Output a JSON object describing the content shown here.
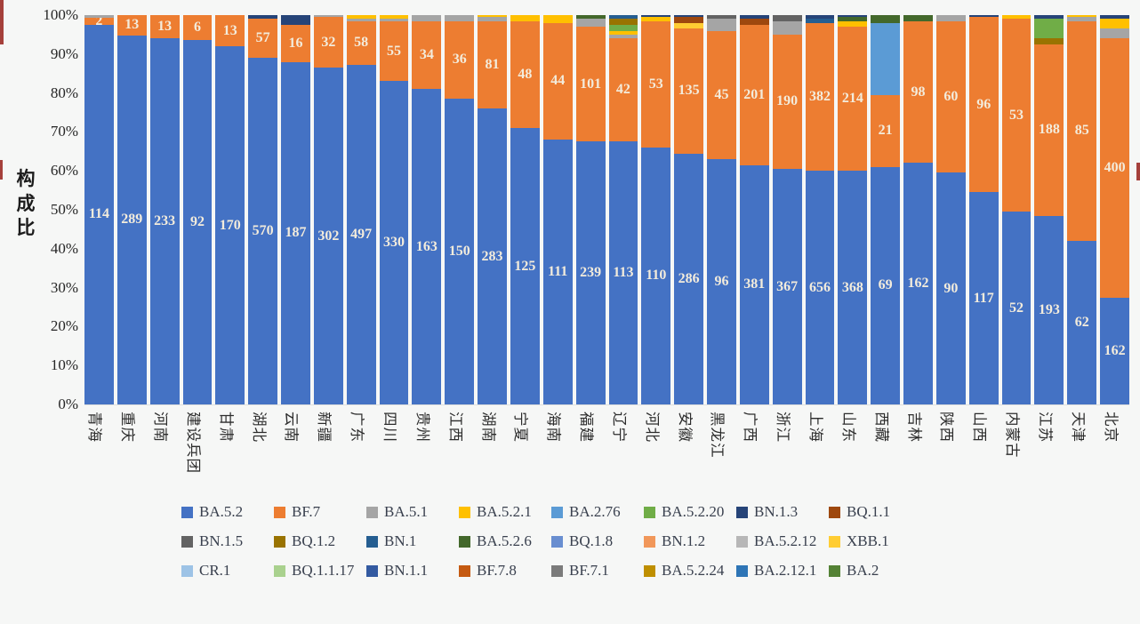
{
  "page": {
    "background": "#f6f7f6"
  },
  "y_axis": {
    "title": "构成比",
    "ticks": [
      "100%",
      "90%",
      "80%",
      "70%",
      "60%",
      "50%",
      "40%",
      "30%",
      "20%",
      "10%",
      "0%"
    ]
  },
  "chart_data": {
    "type": "bar",
    "subtype": "stacked-100-percent",
    "title": "",
    "xlabel": "",
    "ylabel": "构成比",
    "ylim": [
      0,
      100
    ],
    "grid": false,
    "legend_position": "bottom",
    "series_colors": {
      "BA.5.2": "#4472C4",
      "BF.7": "#ED7D31",
      "BA.5.1": "#A5A5A5",
      "BA.5.2.1": "#FFC000",
      "BA.2.76": "#5B9BD5",
      "BA.5.2.20": "#70AD47",
      "BN.1.3": "#264478",
      "BQ.1.1": "#9E480E",
      "BN.1.5": "#636363",
      "BQ.1.2": "#997300",
      "BN.1": "#255E91",
      "BA.5.2.6": "#43682B",
      "BQ.1.8": "#698ED0",
      "BN.1.2": "#F1975A",
      "BA.5.2.12": "#B7B7B7",
      "XBB.1": "#FFCD33",
      "CR.1": "#9DC3E6",
      "BQ.1.1.17": "#A9D18E",
      "BN.1.1": "#335AA1",
      "BF.7.8": "#C55A11",
      "BF.7.1": "#7B7B7B",
      "BA.5.2.24": "#BF8F00",
      "BA.2.12.1": "#2E75B6",
      "BA.2": "#548235"
    },
    "bars": [
      {
        "province": "青海",
        "segments": [
          {
            "variant": "BA.5.2",
            "pct": 97.6,
            "label": "114"
          },
          {
            "variant": "BF.7",
            "pct": 1.7,
            "label": "2"
          },
          {
            "variant": "BA.5.1",
            "pct": 0.7
          }
        ]
      },
      {
        "province": "重庆",
        "segments": [
          {
            "variant": "BA.5.2",
            "pct": 94.8,
            "label": "289"
          },
          {
            "variant": "BF.7",
            "pct": 5.2,
            "label": "13"
          }
        ]
      },
      {
        "province": "河南",
        "segments": [
          {
            "variant": "BA.5.2",
            "pct": 94.0,
            "label": "233"
          },
          {
            "variant": "BF.7",
            "pct": 6.0,
            "label": "13"
          }
        ]
      },
      {
        "province": "建设兵团",
        "segments": [
          {
            "variant": "BA.5.2",
            "pct": 93.5,
            "label": "92"
          },
          {
            "variant": "BF.7",
            "pct": 6.5,
            "label": "6"
          }
        ]
      },
      {
        "province": "甘肃",
        "segments": [
          {
            "variant": "BA.5.2",
            "pct": 92.0,
            "label": "170"
          },
          {
            "variant": "BF.7",
            "pct": 8.0,
            "label": "13"
          }
        ]
      },
      {
        "province": "湖北",
        "segments": [
          {
            "variant": "BA.5.2",
            "pct": 89.0,
            "label": "570"
          },
          {
            "variant": "BF.7",
            "pct": 10.0,
            "label": "57"
          },
          {
            "variant": "BN.1.3",
            "pct": 1.0
          }
        ]
      },
      {
        "province": "云南",
        "segments": [
          {
            "variant": "BA.5.2",
            "pct": 88.0,
            "label": "187"
          },
          {
            "variant": "BF.7",
            "pct": 9.5,
            "label": "16"
          },
          {
            "variant": "BN.1.3",
            "pct": 2.5
          }
        ]
      },
      {
        "province": "新疆",
        "segments": [
          {
            "variant": "BA.5.2",
            "pct": 86.5,
            "label": "302"
          },
          {
            "variant": "BF.7",
            "pct": 13.0,
            "label": "32"
          },
          {
            "variant": "BA.5.1",
            "pct": 0.5
          }
        ]
      },
      {
        "province": "广东",
        "segments": [
          {
            "variant": "BA.5.2",
            "pct": 87.3,
            "label": "497"
          },
          {
            "variant": "BF.7",
            "pct": 11.2,
            "label": "58"
          },
          {
            "variant": "BA.5.1",
            "pct": 0.5
          },
          {
            "variant": "BA.5.2.1",
            "pct": 1.0
          }
        ]
      },
      {
        "province": "四川",
        "segments": [
          {
            "variant": "BA.5.2",
            "pct": 83.0,
            "label": "330"
          },
          {
            "variant": "BF.7",
            "pct": 15.3,
            "label": "55"
          },
          {
            "variant": "BA.5.1",
            "pct": 0.7
          },
          {
            "variant": "BA.5.2.1",
            "pct": 1.0
          }
        ]
      },
      {
        "province": "贵州",
        "segments": [
          {
            "variant": "BA.5.2",
            "pct": 81.0,
            "label": "163"
          },
          {
            "variant": "BF.7",
            "pct": 17.5,
            "label": "34"
          },
          {
            "variant": "BA.5.1",
            "pct": 1.5
          }
        ]
      },
      {
        "province": "江西",
        "segments": [
          {
            "variant": "BA.5.2",
            "pct": 78.5,
            "label": "150"
          },
          {
            "variant": "BF.7",
            "pct": 20.0,
            "label": "36"
          },
          {
            "variant": "BA.5.1",
            "pct": 1.5
          }
        ]
      },
      {
        "province": "湖南",
        "segments": [
          {
            "variant": "BA.5.2",
            "pct": 76.0,
            "label": "283"
          },
          {
            "variant": "BF.7",
            "pct": 22.5,
            "label": "81"
          },
          {
            "variant": "BA.5.1",
            "pct": 1.0
          },
          {
            "variant": "BA.5.2.1",
            "pct": 0.5
          }
        ]
      },
      {
        "province": "宁夏",
        "segments": [
          {
            "variant": "BA.5.2",
            "pct": 71.0,
            "label": "125"
          },
          {
            "variant": "BF.7",
            "pct": 27.5,
            "label": "48"
          },
          {
            "variant": "BA.5.2.1",
            "pct": 1.5
          }
        ]
      },
      {
        "province": "海南",
        "segments": [
          {
            "variant": "BA.5.2",
            "pct": 68.0,
            "label": "111"
          },
          {
            "variant": "BF.7",
            "pct": 30.0,
            "label": "44"
          },
          {
            "variant": "BA.5.2.1",
            "pct": 2.0
          }
        ]
      },
      {
        "province": "福建",
        "segments": [
          {
            "variant": "BA.5.2",
            "pct": 67.5,
            "label": "239"
          },
          {
            "variant": "BF.7",
            "pct": 29.5,
            "label": "101"
          },
          {
            "variant": "BA.5.1",
            "pct": 2.0
          },
          {
            "variant": "BA.5.2.6",
            "pct": 1.0
          }
        ]
      },
      {
        "province": "辽宁",
        "segments": [
          {
            "variant": "BA.5.2",
            "pct": 67.5,
            "label": "113"
          },
          {
            "variant": "BF.7",
            "pct": 26.5,
            "label": "42"
          },
          {
            "variant": "BA.5.1",
            "pct": 1.0
          },
          {
            "variant": "BA.5.2.1",
            "pct": 1.0
          },
          {
            "variant": "BA.5.2.20",
            "pct": 1.5
          },
          {
            "variant": "BQ.1.2",
            "pct": 1.5
          },
          {
            "variant": "BN.1",
            "pct": 1.0
          }
        ]
      },
      {
        "province": "河北",
        "segments": [
          {
            "variant": "BA.5.2",
            "pct": 66.0,
            "label": "110"
          },
          {
            "variant": "BF.7",
            "pct": 32.5,
            "label": "53"
          },
          {
            "variant": "BA.5.2.1",
            "pct": 1.0
          },
          {
            "variant": "BN.1.3",
            "pct": 0.5
          }
        ]
      },
      {
        "province": "安徽",
        "segments": [
          {
            "variant": "BA.5.2",
            "pct": 64.5,
            "label": "286"
          },
          {
            "variant": "BF.7",
            "pct": 32.0,
            "label": "135"
          },
          {
            "variant": "XBB.1",
            "pct": 1.5
          },
          {
            "variant": "BQ.1.1",
            "pct": 1.5
          },
          {
            "variant": "BN.1.3",
            "pct": 0.5
          }
        ]
      },
      {
        "province": "黑龙江",
        "segments": [
          {
            "variant": "BA.5.2",
            "pct": 63.0,
            "label": "96"
          },
          {
            "variant": "BF.7",
            "pct": 33.0,
            "label": "45"
          },
          {
            "variant": "BA.5.1",
            "pct": 3.0
          },
          {
            "variant": "BN.1.5",
            "pct": 1.0
          }
        ]
      },
      {
        "province": "广西",
        "segments": [
          {
            "variant": "BA.5.2",
            "pct": 61.5,
            "label": "381"
          },
          {
            "variant": "BF.7",
            "pct": 36.0,
            "label": "201"
          },
          {
            "variant": "BQ.1.1",
            "pct": 1.5
          },
          {
            "variant": "BN.1.3",
            "pct": 1.0
          }
        ]
      },
      {
        "province": "浙江",
        "segments": [
          {
            "variant": "BA.5.2",
            "pct": 60.5,
            "label": "367"
          },
          {
            "variant": "BF.7",
            "pct": 34.5,
            "label": "190"
          },
          {
            "variant": "BA.5.1",
            "pct": 3.5
          },
          {
            "variant": "BN.1.5",
            "pct": 1.5
          }
        ]
      },
      {
        "province": "上海",
        "segments": [
          {
            "variant": "BA.5.2",
            "pct": 60.0,
            "label": "656"
          },
          {
            "variant": "BF.7",
            "pct": 38.0,
            "label": "382"
          },
          {
            "variant": "BN.1",
            "pct": 1.0
          },
          {
            "variant": "BN.1.3",
            "pct": 1.0
          }
        ]
      },
      {
        "province": "山东",
        "segments": [
          {
            "variant": "BA.5.2",
            "pct": 60.0,
            "label": "368"
          },
          {
            "variant": "BF.7",
            "pct": 37.0,
            "label": "214"
          },
          {
            "variant": "BA.5.2.1",
            "pct": 1.5
          },
          {
            "variant": "BA.5.2.6",
            "pct": 1.0
          },
          {
            "variant": "BN.1.3",
            "pct": 0.5
          }
        ]
      },
      {
        "province": "西藏",
        "segments": [
          {
            "variant": "BA.5.2",
            "pct": 61.0,
            "label": "69"
          },
          {
            "variant": "BF.7",
            "pct": 18.5,
            "label": "21"
          },
          {
            "variant": "BA.2.76",
            "pct": 18.5
          },
          {
            "variant": "BA.5.2.6",
            "pct": 2.0
          }
        ]
      },
      {
        "province": "吉林",
        "segments": [
          {
            "variant": "BA.5.2",
            "pct": 62.0,
            "label": "162"
          },
          {
            "variant": "BF.7",
            "pct": 36.5,
            "label": "98"
          },
          {
            "variant": "BA.5.2.6",
            "pct": 1.5
          }
        ]
      },
      {
        "province": "陕西",
        "segments": [
          {
            "variant": "BA.5.2",
            "pct": 59.5,
            "label": "90"
          },
          {
            "variant": "BF.7",
            "pct": 39.0,
            "label": "60"
          },
          {
            "variant": "BA.5.1",
            "pct": 1.5
          }
        ]
      },
      {
        "province": "山西",
        "segments": [
          {
            "variant": "BA.5.2",
            "pct": 54.5,
            "label": "117"
          },
          {
            "variant": "BF.7",
            "pct": 45.0,
            "label": "96"
          },
          {
            "variant": "BN.1.3",
            "pct": 0.5
          }
        ]
      },
      {
        "province": "内蒙古",
        "segments": [
          {
            "variant": "BA.5.2",
            "pct": 49.5,
            "label": "52"
          },
          {
            "variant": "BF.7",
            "pct": 49.5,
            "label": "53"
          },
          {
            "variant": "BA.5.2.1",
            "pct": 1.0
          }
        ]
      },
      {
        "province": "江苏",
        "segments": [
          {
            "variant": "BA.5.2",
            "pct": 48.5,
            "label": "193"
          },
          {
            "variant": "BF.7",
            "pct": 44.0,
            "label": "188"
          },
          {
            "variant": "BQ.1.2",
            "pct": 1.5
          },
          {
            "variant": "BA.5.2.20",
            "pct": 5.0
          },
          {
            "variant": "BN.1.3",
            "pct": 1.0
          }
        ]
      },
      {
        "province": "天津",
        "segments": [
          {
            "variant": "BA.5.2",
            "pct": 42.0,
            "label": "62"
          },
          {
            "variant": "BF.7",
            "pct": 56.5,
            "label": "85"
          },
          {
            "variant": "BA.5.1",
            "pct": 1.0
          },
          {
            "variant": "BA.5.2.1",
            "pct": 0.5
          }
        ]
      },
      {
        "province": "北京",
        "segments": [
          {
            "variant": "BA.5.2",
            "pct": 27.5,
            "label": "162"
          },
          {
            "variant": "BF.7",
            "pct": 66.5,
            "label": "400"
          },
          {
            "variant": "BA.5.1",
            "pct": 2.5
          },
          {
            "variant": "BA.5.2.1",
            "pct": 2.5
          },
          {
            "variant": "BN.1.3",
            "pct": 1.0
          }
        ]
      }
    ]
  },
  "legend": {
    "rows": [
      [
        "BA.5.2",
        "BF.7",
        "BA.5.1",
        "BA.5.2.1",
        "BA.2.76",
        "BA.5.2.20",
        "BN.1.3",
        "BQ.1.1"
      ],
      [
        "BN.1.5",
        "BQ.1.2",
        "BN.1",
        "BA.5.2.6",
        "BQ.1.8",
        "BN.1.2",
        "BA.5.2.12",
        "XBB.1"
      ],
      [
        "CR.1",
        "BQ.1.1.17",
        "BN.1.1",
        "BF.7.8",
        "BF.7.1",
        "BA.5.2.24",
        "BA.2.12.1",
        "BA.2"
      ]
    ]
  }
}
